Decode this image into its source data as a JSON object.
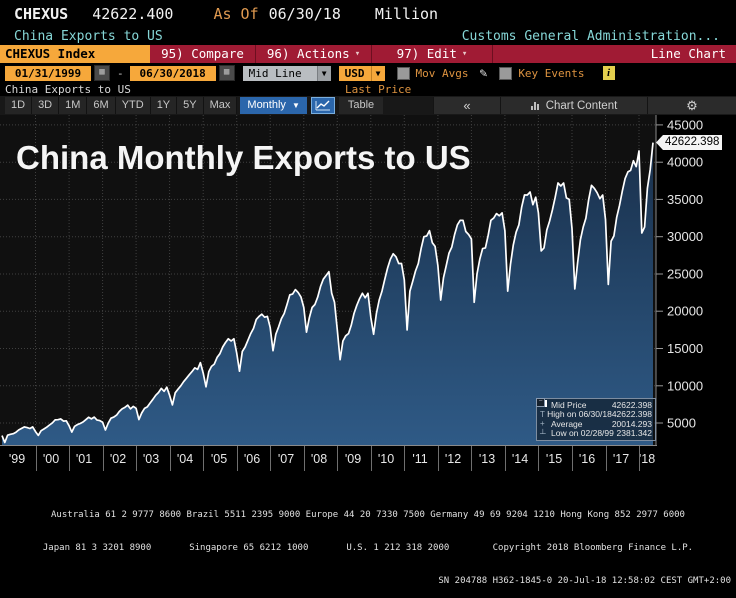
{
  "header": {
    "ticker": "CHEXUS",
    "value": "42622.400",
    "as_of_label": "As Of",
    "as_of_date": "06/30/18",
    "unit": "Million",
    "security_name": "China Exports to US",
    "source": "Customs General Administration...",
    "tab_label": "CHEXUS Index",
    "menu": [
      {
        "label": "95) Compare",
        "caret": false
      },
      {
        "label": "96) Actions",
        "caret": true
      },
      {
        "label": "97) Edit",
        "caret": true
      }
    ],
    "view_label": "Line Chart"
  },
  "controls": {
    "date_from": "01/31/1999",
    "dash": "-",
    "date_to": "06/30/2018",
    "field_type": "Mid Line",
    "currency": "USD",
    "mov_avgs_label": "Mov Avgs",
    "key_events_label": "Key Events",
    "security_sub": "China Exports to US",
    "price_type": "Last Price"
  },
  "toolbar": {
    "ranges": [
      "1D",
      "3D",
      "1M",
      "6M",
      "YTD",
      "1Y",
      "5Y",
      "Max"
    ],
    "period": "Monthly",
    "table_label": "Table",
    "chart_content_label": "Chart Content"
  },
  "icons": {
    "caret_down": "▾",
    "select_caret": "▼",
    "calendar": "▦",
    "pencil": "✎",
    "info": "i",
    "collapse_chevrons": "«",
    "gear": "⚙",
    "legend_high": "T",
    "legend_avg": "+",
    "legend_low": "┴",
    "legend_collapse": "−"
  },
  "colors": {
    "bloomberg_red": "#a01b34",
    "amber": "#f6a83b",
    "cyan_text": "#86d7d7",
    "orange_text": "#dd9340",
    "selected_blue": "#2b66ab",
    "line": "#ffffff",
    "area_top": "#182c46",
    "area_bottom": "#2f5a86",
    "grid": "#404040",
    "plot_bg": "#101010"
  },
  "chart_data": {
    "type": "area",
    "title": "China Monthly Exports to US",
    "unit": "USD Million",
    "x_start": "1999-01",
    "x_end": "2018-06",
    "x_tick_labels": [
      "'99",
      "'00",
      "'01",
      "'02",
      "'03",
      "'04",
      "'05",
      "'06",
      "'07",
      "'08",
      "'09",
      "'10",
      "'11",
      "'12",
      "'13",
      "'14",
      "'15",
      "'16",
      "'17",
      "'18"
    ],
    "y_ticks": [
      45000,
      40000,
      35000,
      30000,
      25000,
      20000,
      15000,
      10000,
      5000
    ],
    "y_axis_min": 2050,
    "y_axis_max": 46330,
    "grid": "dotted",
    "last_value": 42622.398,
    "last_value_label": "42622.398",
    "monthly_values": [
      3309,
      2381.342,
      3361,
      3480,
      3561,
      3767,
      4080,
      4280,
      4480,
      4380,
      4260,
      4480,
      3850,
      3340,
      3970,
      4200,
      4440,
      4740,
      5010,
      5420,
      5450,
      5550,
      5260,
      5300,
      4630,
      3780,
      4560,
      4790,
      4940,
      5130,
      5440,
      5770,
      5550,
      5800,
      5390,
      5330,
      5110,
      4060,
      4970,
      5640,
      5800,
      6060,
      6540,
      6900,
      7100,
      7400,
      6900,
      7230,
      6980,
      5460,
      6340,
      6960,
      7160,
      7680,
      8180,
      8720,
      9100,
      9650,
      9250,
      9800,
      8710,
      7430,
      9060,
      9540,
      10000,
      10550,
      11000,
      11470,
      11900,
      12400,
      12200,
      13100,
      11700,
      9860,
      11900,
      12600,
      12900,
      13800,
      14300,
      15200,
      15800,
      16300,
      16000,
      16300,
      14400,
      11950,
      14600,
      15200,
      16100,
      17000,
      17700,
      18900,
      19300,
      19600,
      19200,
      19300,
      17800,
      14700,
      16900,
      17900,
      19000,
      19700,
      20900,
      22200,
      22300,
      22900,
      22500,
      21900,
      20500,
      17200,
      19100,
      20500,
      20900,
      21900,
      23300,
      24300,
      24800,
      25300,
      22400,
      21200,
      17500,
      13500,
      16000,
      16700,
      17000,
      18100,
      19700,
      20800,
      21700,
      22400,
      21800,
      22400,
      19200,
      16900,
      19700,
      21500,
      22700,
      24300,
      25800,
      27000,
      27700,
      27300,
      26400,
      26400,
      24200,
      17500,
      22700,
      24000,
      25400,
      26400,
      28400,
      30000,
      30100,
      30800,
      29200,
      28700,
      26100,
      21500,
      24500,
      26100,
      27800,
      28600,
      30300,
      31600,
      32200,
      32200,
      30700,
      30300,
      29700,
      21200,
      25000,
      27000,
      28400,
      28500,
      30200,
      32200,
      32500,
      33100,
      32800,
      33200,
      30800,
      22700,
      26300,
      28900,
      30600,
      31600,
      34000,
      35600,
      35600,
      36000,
      34300,
      35300,
      33200,
      28100,
      28500,
      30900,
      32100,
      33600,
      35300,
      37200,
      36800,
      37200,
      35200,
      35000,
      31100,
      23000,
      26500,
      29600,
      31300,
      32500,
      35000,
      36900,
      36500,
      35900,
      35100,
      35600,
      32300,
      23600,
      29400,
      30100,
      32600,
      34200,
      36100,
      37800,
      38700,
      38900,
      40200,
      39400,
      41500,
      30500,
      31300,
      36500,
      39000,
      42622.398
    ],
    "legend": {
      "rows": [
        {
          "icon": "square",
          "label": "Mid Price",
          "value": "42622.398"
        },
        {
          "icon": "high",
          "label": "High on 06/30/18",
          "value": "42622.398"
        },
        {
          "icon": "avg",
          "label": "Average",
          "value": "20014.293"
        },
        {
          "icon": "low",
          "label": "Low on 02/28/99",
          "value": "2381.342"
        }
      ]
    }
  },
  "footer": {
    "line1": "Australia 61 2 9777 8600 Brazil 5511 2395 9000 Europe 44 20 7330 7500 Germany 49 69 9204 1210 Hong Kong 852 2977 6000",
    "line2": "Japan 81 3 3201 8900       Singapore 65 6212 1000       U.S. 1 212 318 2000        Copyright 2018 Bloomberg Finance L.P.",
    "line3": "SN 204788 H362-1845-0 20-Jul-18 12:58:02 CEST GMT+2:00"
  }
}
